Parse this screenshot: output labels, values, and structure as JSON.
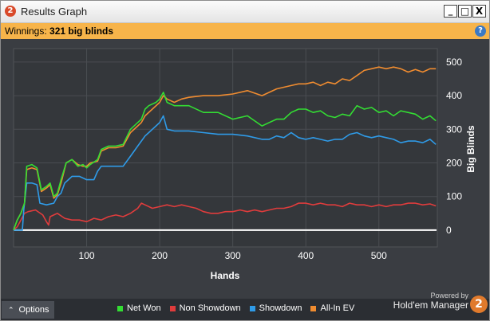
{
  "window": {
    "title": "Results Graph",
    "logo_text": "2",
    "min_label": "_",
    "max_label": "□",
    "close_label": "X"
  },
  "status": {
    "winnings_label": "Winnings:",
    "winnings_value": "321 big blinds",
    "help_label": "?"
  },
  "footer": {
    "options_label": "Options",
    "powered_by": "Powered by",
    "brand": "Hold'em Manager",
    "brand_logo": "2"
  },
  "colors": {
    "net_won": "#33dd33",
    "non_showdown": "#e03c3c",
    "showdown": "#2f9be8",
    "allin_ev": "#f08c30",
    "zero_line": "#ffffff"
  },
  "chart_data": {
    "type": "line",
    "title": "",
    "xlabel": "Hands",
    "ylabel": "Big Blinds",
    "xlim": [
      0,
      580
    ],
    "ylim": [
      -50,
      540
    ],
    "x_ticks": [
      100,
      200,
      300,
      400,
      500
    ],
    "y_ticks": [
      0,
      100,
      200,
      300,
      400,
      500
    ],
    "grid": true,
    "legend_position": "bottom",
    "series": [
      {
        "name": "Net Won",
        "color_key": "net_won",
        "points": [
          [
            0,
            0
          ],
          [
            5,
            30
          ],
          [
            10,
            50
          ],
          [
            15,
            80
          ],
          [
            18,
            190
          ],
          [
            25,
            195
          ],
          [
            32,
            185
          ],
          [
            38,
            120
          ],
          [
            45,
            130
          ],
          [
            50,
            140
          ],
          [
            55,
            100
          ],
          [
            60,
            110
          ],
          [
            65,
            150
          ],
          [
            72,
            200
          ],
          [
            80,
            210
          ],
          [
            88,
            190
          ],
          [
            95,
            195
          ],
          [
            100,
            185
          ],
          [
            105,
            195
          ],
          [
            115,
            210
          ],
          [
            120,
            240
          ],
          [
            130,
            250
          ],
          [
            140,
            250
          ],
          [
            150,
            255
          ],
          [
            160,
            300
          ],
          [
            170,
            320
          ],
          [
            175,
            330
          ],
          [
            180,
            360
          ],
          [
            185,
            370
          ],
          [
            195,
            380
          ],
          [
            200,
            390
          ],
          [
            205,
            410
          ],
          [
            210,
            380
          ],
          [
            220,
            370
          ],
          [
            240,
            370
          ],
          [
            260,
            350
          ],
          [
            280,
            350
          ],
          [
            300,
            330
          ],
          [
            320,
            340
          ],
          [
            340,
            310
          ],
          [
            350,
            320
          ],
          [
            360,
            330
          ],
          [
            370,
            330
          ],
          [
            380,
            350
          ],
          [
            390,
            360
          ],
          [
            400,
            360
          ],
          [
            410,
            350
          ],
          [
            420,
            355
          ],
          [
            430,
            340
          ],
          [
            440,
            335
          ],
          [
            450,
            345
          ],
          [
            460,
            340
          ],
          [
            470,
            370
          ],
          [
            480,
            360
          ],
          [
            490,
            365
          ],
          [
            500,
            350
          ],
          [
            510,
            355
          ],
          [
            520,
            340
          ],
          [
            530,
            355
          ],
          [
            540,
            350
          ],
          [
            550,
            345
          ],
          [
            560,
            330
          ],
          [
            570,
            340
          ],
          [
            578,
            325
          ]
        ]
      },
      {
        "name": "Non Showdown",
        "color_key": "non_showdown",
        "points": [
          [
            0,
            0
          ],
          [
            5,
            10
          ],
          [
            10,
            30
          ],
          [
            15,
            50
          ],
          [
            20,
            55
          ],
          [
            30,
            60
          ],
          [
            40,
            45
          ],
          [
            45,
            25
          ],
          [
            48,
            15
          ],
          [
            50,
            40
          ],
          [
            55,
            45
          ],
          [
            60,
            50
          ],
          [
            70,
            35
          ],
          [
            80,
            30
          ],
          [
            90,
            30
          ],
          [
            100,
            25
          ],
          [
            110,
            35
          ],
          [
            120,
            30
          ],
          [
            130,
            40
          ],
          [
            140,
            45
          ],
          [
            150,
            40
          ],
          [
            160,
            50
          ],
          [
            170,
            65
          ],
          [
            175,
            80
          ],
          [
            180,
            75
          ],
          [
            190,
            65
          ],
          [
            200,
            70
          ],
          [
            210,
            75
          ],
          [
            220,
            70
          ],
          [
            230,
            75
          ],
          [
            240,
            70
          ],
          [
            250,
            65
          ],
          [
            260,
            55
          ],
          [
            270,
            50
          ],
          [
            280,
            50
          ],
          [
            290,
            55
          ],
          [
            300,
            55
          ],
          [
            310,
            60
          ],
          [
            320,
            55
          ],
          [
            330,
            60
          ],
          [
            340,
            55
          ],
          [
            350,
            60
          ],
          [
            360,
            65
          ],
          [
            370,
            65
          ],
          [
            380,
            70
          ],
          [
            390,
            80
          ],
          [
            400,
            80
          ],
          [
            410,
            75
          ],
          [
            420,
            80
          ],
          [
            430,
            75
          ],
          [
            440,
            75
          ],
          [
            450,
            70
          ],
          [
            460,
            80
          ],
          [
            470,
            75
          ],
          [
            480,
            75
          ],
          [
            490,
            70
          ],
          [
            500,
            75
          ],
          [
            510,
            70
          ],
          [
            520,
            75
          ],
          [
            530,
            75
          ],
          [
            540,
            80
          ],
          [
            550,
            80
          ],
          [
            560,
            75
          ],
          [
            570,
            78
          ],
          [
            578,
            72
          ]
        ]
      },
      {
        "name": "Showdown",
        "color_key": "showdown",
        "points": [
          [
            0,
            0
          ],
          [
            12,
            0
          ],
          [
            14,
            60
          ],
          [
            18,
            140
          ],
          [
            25,
            140
          ],
          [
            32,
            135
          ],
          [
            36,
            80
          ],
          [
            45,
            75
          ],
          [
            55,
            80
          ],
          [
            60,
            100
          ],
          [
            65,
            110
          ],
          [
            70,
            140
          ],
          [
            75,
            150
          ],
          [
            80,
            160
          ],
          [
            90,
            160
          ],
          [
            95,
            155
          ],
          [
            100,
            150
          ],
          [
            110,
            150
          ],
          [
            115,
            175
          ],
          [
            120,
            190
          ],
          [
            130,
            190
          ],
          [
            140,
            190
          ],
          [
            150,
            190
          ],
          [
            160,
            220
          ],
          [
            170,
            250
          ],
          [
            180,
            280
          ],
          [
            185,
            290
          ],
          [
            190,
            300
          ],
          [
            195,
            310
          ],
          [
            200,
            320
          ],
          [
            205,
            340
          ],
          [
            210,
            300
          ],
          [
            220,
            295
          ],
          [
            240,
            295
          ],
          [
            260,
            290
          ],
          [
            280,
            285
          ],
          [
            300,
            285
          ],
          [
            320,
            280
          ],
          [
            340,
            270
          ],
          [
            350,
            270
          ],
          [
            360,
            280
          ],
          [
            370,
            275
          ],
          [
            380,
            290
          ],
          [
            390,
            275
          ],
          [
            400,
            270
          ],
          [
            410,
            275
          ],
          [
            420,
            270
          ],
          [
            430,
            265
          ],
          [
            440,
            270
          ],
          [
            450,
            270
          ],
          [
            460,
            285
          ],
          [
            470,
            290
          ],
          [
            480,
            280
          ],
          [
            490,
            275
          ],
          [
            500,
            280
          ],
          [
            510,
            275
          ],
          [
            520,
            270
          ],
          [
            530,
            260
          ],
          [
            540,
            265
          ],
          [
            550,
            265
          ],
          [
            560,
            260
          ],
          [
            570,
            270
          ],
          [
            578,
            255
          ]
        ]
      },
      {
        "name": "All-In EV",
        "color_key": "allin_ev",
        "points": [
          [
            0,
            0
          ],
          [
            5,
            30
          ],
          [
            10,
            50
          ],
          [
            15,
            80
          ],
          [
            18,
            180
          ],
          [
            25,
            185
          ],
          [
            32,
            180
          ],
          [
            38,
            115
          ],
          [
            45,
            125
          ],
          [
            50,
            135
          ],
          [
            55,
            95
          ],
          [
            60,
            105
          ],
          [
            65,
            140
          ],
          [
            72,
            200
          ],
          [
            80,
            210
          ],
          [
            88,
            195
          ],
          [
            95,
            190
          ],
          [
            100,
            190
          ],
          [
            105,
            200
          ],
          [
            115,
            205
          ],
          [
            120,
            235
          ],
          [
            130,
            245
          ],
          [
            140,
            245
          ],
          [
            150,
            250
          ],
          [
            160,
            290
          ],
          [
            170,
            310
          ],
          [
            175,
            320
          ],
          [
            180,
            340
          ],
          [
            190,
            360
          ],
          [
            200,
            380
          ],
          [
            205,
            400
          ],
          [
            210,
            390
          ],
          [
            220,
            380
          ],
          [
            230,
            390
          ],
          [
            240,
            395
          ],
          [
            260,
            400
          ],
          [
            280,
            400
          ],
          [
            300,
            405
          ],
          [
            320,
            415
          ],
          [
            340,
            400
          ],
          [
            350,
            410
          ],
          [
            360,
            420
          ],
          [
            370,
            425
          ],
          [
            380,
            430
          ],
          [
            390,
            435
          ],
          [
            400,
            435
          ],
          [
            410,
            440
          ],
          [
            420,
            430
          ],
          [
            430,
            440
          ],
          [
            440,
            435
          ],
          [
            450,
            450
          ],
          [
            460,
            445
          ],
          [
            470,
            460
          ],
          [
            480,
            475
          ],
          [
            490,
            480
          ],
          [
            500,
            485
          ],
          [
            510,
            480
          ],
          [
            520,
            485
          ],
          [
            530,
            480
          ],
          [
            540,
            470
          ],
          [
            550,
            478
          ],
          [
            560,
            470
          ],
          [
            570,
            480
          ],
          [
            578,
            480
          ]
        ]
      }
    ]
  }
}
